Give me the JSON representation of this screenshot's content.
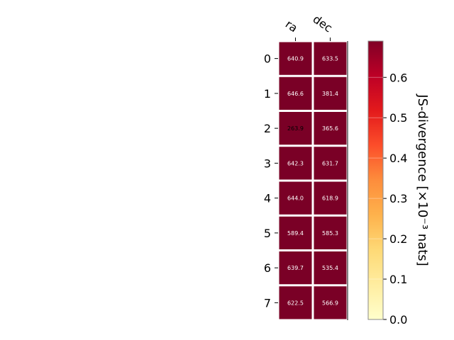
{
  "chart_data": {
    "type": "heatmap",
    "columns": [
      "ra",
      "dec"
    ],
    "rows": [
      "0",
      "1",
      "2",
      "3",
      "4",
      "5",
      "6",
      "7"
    ],
    "values": [
      [
        640.9,
        633.5
      ],
      [
        646.6,
        381.4
      ],
      [
        263.9,
        365.6
      ],
      [
        642.3,
        631.7
      ],
      [
        644.0,
        618.9
      ],
      [
        589.4,
        585.3
      ],
      [
        639.7,
        535.4
      ],
      [
        622.5,
        566.9
      ]
    ],
    "cell_labels": [
      [
        "640.9",
        "633.5"
      ],
      [
        "646.6",
        "381.4"
      ],
      [
        "263.9",
        "365.6"
      ],
      [
        "642.3",
        "631.7"
      ],
      [
        "644.0",
        "618.9"
      ],
      [
        "589.4",
        "585.3"
      ],
      [
        "639.7",
        "535.4"
      ],
      [
        "622.5",
        "566.9"
      ]
    ],
    "colorbar": {
      "label": "JS-divergence [×10⁻³ nats]",
      "range": [
        0,
        0.69
      ],
      "ticks": [
        "0.0",
        "0.1",
        "0.2",
        "0.3",
        "0.4",
        "0.5",
        "0.6"
      ],
      "colormap": "YlOrRd"
    },
    "cell_fill": "#7a0026",
    "cell_text_color": "#ffffff",
    "grid": false
  }
}
